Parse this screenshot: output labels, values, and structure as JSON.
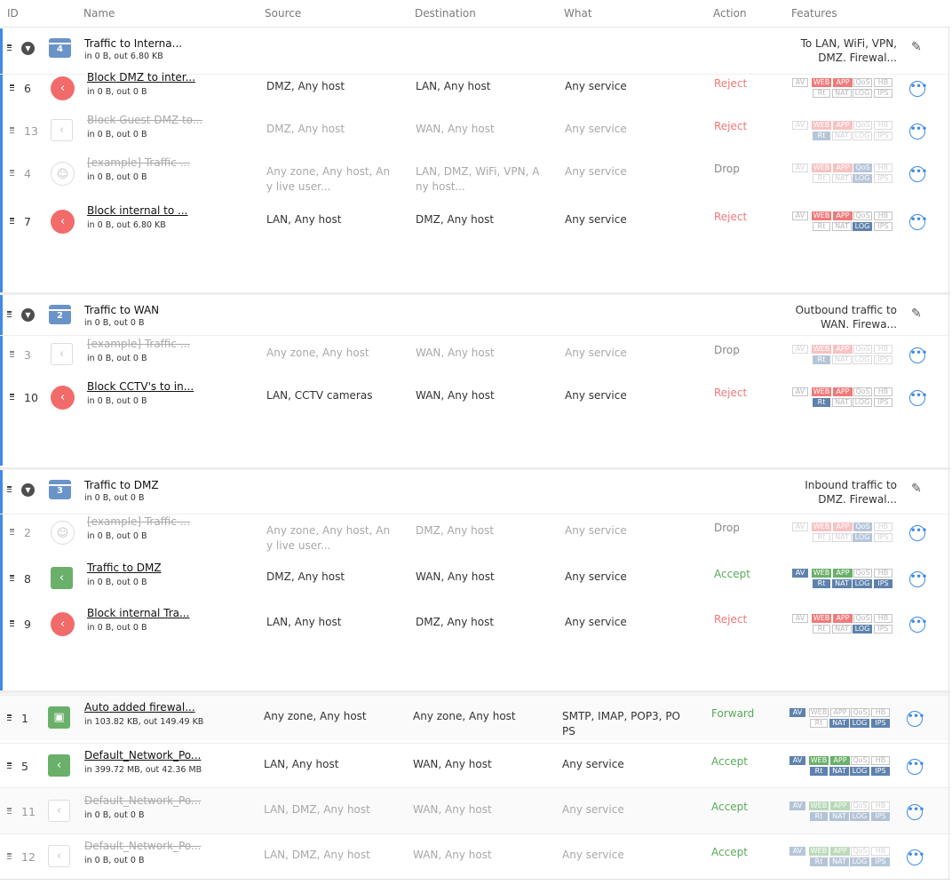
{
  "header": {
    "id": "ID",
    "name": "Name",
    "source": "Source",
    "destination": "Destination",
    "what": "What",
    "action": "Action",
    "features": "Features"
  },
  "groups": [
    {
      "id": "4",
      "name": "Traffic to Interna...",
      "stats": "in 0 B, out 6.80 KB",
      "desc": [
        "To LAN, WiFi, VPN,",
        "DMZ. Firewal..."
      ],
      "rules": [
        {
          "id": "6",
          "name": "Block DMZ to inter...",
          "stats": "in 0 B, out 0 B",
          "source": [
            "DMZ, Any host"
          ],
          "dest": [
            "LAN, Any host"
          ],
          "what": [
            "Any service"
          ],
          "action": "Reject",
          "enabled": true,
          "icon": "stop-icon",
          "on": [
            "WEB",
            "APP"
          ]
        },
        {
          "id": "13",
          "name": "Block Guest DMZ to...",
          "stats": "in 0 B, out 0 B",
          "source": [
            "DMZ, Any host"
          ],
          "dest": [
            "WAN, Any host"
          ],
          "what": [
            "Any service"
          ],
          "action": "Reject",
          "enabled": false,
          "icon": "share-icon",
          "on": [
            "WEB",
            "APP",
            "Rt"
          ]
        },
        {
          "id": "4",
          "name": "[example] Traffic ...",
          "stats": "in 0 B, out 0 B",
          "source": [
            "Any zone, Any host, An",
            "y live user..."
          ],
          "dest": [
            "LAN, DMZ, WiFi, VPN, A",
            "ny host..."
          ],
          "what": [
            "Any service"
          ],
          "action": "Drop",
          "enabled": false,
          "icon": "user-icon",
          "on": [
            "WEB",
            "APP",
            "QoS",
            "LOG"
          ]
        },
        {
          "id": "7",
          "name": "Block internal to ...",
          "stats": "in 0 B, out 6.80 KB",
          "source": [
            "LAN, Any host"
          ],
          "dest": [
            "DMZ, Any host"
          ],
          "what": [
            "Any service"
          ],
          "action": "Reject",
          "enabled": true,
          "icon": "stop-icon",
          "on": [
            "WEB",
            "APP",
            "LOG"
          ]
        }
      ]
    },
    {
      "id": "2",
      "name": "Traffic to WAN",
      "stats": "in 0 B, out 0 B",
      "desc": [
        "Outbound traffic to",
        "WAN. Firewa..."
      ],
      "rules": [
        {
          "id": "3",
          "name": "[example] Traffic ...",
          "stats": "in 0 B, out 0 B",
          "source": [
            "Any zone, Any host"
          ],
          "dest": [
            "WAN, Any host"
          ],
          "what": [
            "Any service"
          ],
          "action": "Drop",
          "enabled": false,
          "icon": "share-icon",
          "on": [
            "WEB",
            "APP",
            "Rt"
          ]
        },
        {
          "id": "10",
          "name": "Block CCTV's to in...",
          "stats": "in 0 B, out 0 B",
          "source": [
            "LAN, CCTV cameras"
          ],
          "dest": [
            "WAN, Any host"
          ],
          "what": [
            "Any service"
          ],
          "action": "Reject",
          "enabled": true,
          "icon": "stop-icon",
          "on": [
            "WEB",
            "APP",
            "Rt"
          ]
        }
      ]
    },
    {
      "id": "3",
      "name": "Traffic to DMZ",
      "stats": "in 0 B, out 0 B",
      "desc": [
        "Inbound traffic to",
        "DMZ. Firewal..."
      ],
      "rules": [
        {
          "id": "2",
          "name": "[example] Traffic ...",
          "stats": "in 0 B, out 0 B",
          "source": [
            "Any zone, Any host, An",
            "y live user..."
          ],
          "dest": [
            "DMZ, Any host"
          ],
          "what": [
            "Any service"
          ],
          "action": "Drop",
          "enabled": false,
          "icon": "user-icon",
          "on": [
            "WEB",
            "APP",
            "QoS",
            "LOG"
          ]
        },
        {
          "id": "8",
          "name": "Traffic to DMZ",
          "stats": "in 0 B, out 0 B",
          "source": [
            "DMZ, Any host"
          ],
          "dest": [
            "WAN, Any host"
          ],
          "what": [
            "Any service"
          ],
          "action": "Accept",
          "enabled": true,
          "icon": "share-icon",
          "on": [
            "AV",
            "WEB",
            "APP",
            "Rt",
            "NAT",
            "LOG",
            "IPS"
          ]
        },
        {
          "id": "9",
          "name": "Block internal Tra...",
          "stats": "in 0 B, out 0 B",
          "source": [
            "LAN, Any host"
          ],
          "dest": [
            "DMZ, Any host"
          ],
          "what": [
            "Any service"
          ],
          "action": "Reject",
          "enabled": true,
          "icon": "stop-icon",
          "on": [
            "WEB",
            "APP",
            "LOG"
          ]
        }
      ]
    }
  ],
  "bottom_rules": [
    {
      "id": "1",
      "name": "Auto added firewal...",
      "stats": "in 103.82 KB, out 149.49 KB",
      "source": [
        "Any zone, Any host"
      ],
      "dest": [
        "Any zone, Any host"
      ],
      "what": [
        "SMTP, IMAP, POP3, PO",
        "PS"
      ],
      "action": "Forward",
      "enabled": true,
      "icon": "briefcase-icon",
      "on": [
        "AV",
        "NAT",
        "LOG",
        "IPS"
      ]
    },
    {
      "id": "5",
      "name": "Default_Network_Po...",
      "stats": "in 399.72 MB, out 42.36 MB",
      "source": [
        "LAN, Any host"
      ],
      "dest": [
        "WAN, Any host"
      ],
      "what": [
        "Any service"
      ],
      "action": "Accept",
      "enabled": true,
      "icon": "share-icon",
      "on": [
        "AV",
        "WEB",
        "APP",
        "Rt",
        "NAT",
        "LOG",
        "IPS"
      ]
    },
    {
      "id": "11",
      "name": "Default_Network_Po...",
      "stats": "in 0 B, out 0 B",
      "source": [
        "LAN, DMZ, Any host"
      ],
      "dest": [
        "WAN, Any host"
      ],
      "what": [
        "Any service"
      ],
      "action": "Accept",
      "enabled": false,
      "icon": "share-icon",
      "on": [
        "AV",
        "WEB",
        "APP",
        "Rt",
        "NAT",
        "LOG",
        "IPS"
      ]
    },
    {
      "id": "12",
      "name": "Default_Network_Po...",
      "stats": "in 0 B, out 0 B",
      "source": [
        "LAN, DMZ, Any host"
      ],
      "dest": [
        "WAN, Any host"
      ],
      "what": [
        "Any service"
      ],
      "action": "Accept",
      "enabled": false,
      "icon": "share-icon",
      "on": [
        "AV",
        "WEB",
        "APP",
        "Rt",
        "NAT",
        "LOG",
        "IPS"
      ]
    }
  ],
  "features": [
    "AV",
    "WEB",
    "APP",
    "QoS",
    "HB",
    "Rt",
    "NAT",
    "LOG",
    "IPS"
  ],
  "feature_colors": {
    "AV": "#5e82ad",
    "WEB": "#f07a7a",
    "APP": "#f07a7a",
    "QoS": "#5e82ad",
    "HB": "#5e82ad",
    "Rt": "#5e82ad",
    "NAT": "#5e82ad",
    "LOG": "#5e82ad",
    "IPS": "#5e82ad"
  },
  "accept_colors": {
    "WEB": "#6ab06a",
    "APP": "#6ab06a"
  },
  "action_colors": {
    "Reject": "#f07878",
    "Drop": "#888888",
    "Accept": "#5aaa5a",
    "Forward": "#5aaa5a"
  },
  "icons": {
    "chevron": "chevron-down-icon",
    "edit": "pencil-icon",
    "more": "more-icon",
    "handle": "drag-handle-icon"
  }
}
